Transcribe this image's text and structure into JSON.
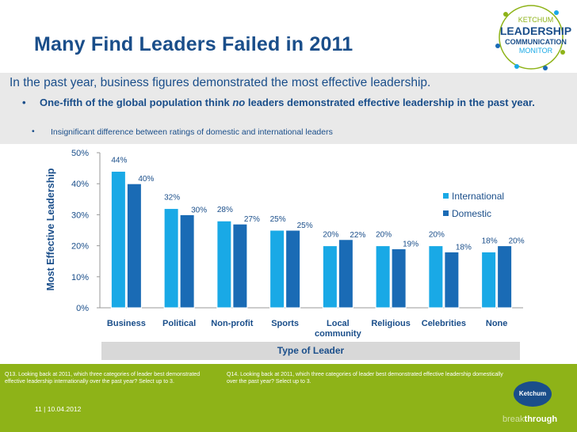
{
  "slide": {
    "title": "Many Find Leaders Failed in 2011",
    "line1": "In the past year, business figures demonstrated the most effective leadership.",
    "bullet1_dot": "•",
    "bullet1_pre": "One-fifth of the global population think ",
    "bullet1_em": "no",
    "bullet1_post": " leaders demonstrated effective leadership in the past year.",
    "bullet2_dot": "•",
    "bullet2": "Insignificant difference between ratings of domestic and international leaders",
    "page_number": "11 | 10.04.2012"
  },
  "logo": {
    "line1": "KETCHUM",
    "line2": "LEADERSHIP",
    "line3": "COMMUNICATION",
    "line4": "MONITOR"
  },
  "footer": {
    "q13": "Q13. Looking back at 2011, which three categories of leader best demonstrated effective leadership internationally over the past year?  Select up to 3.",
    "q14": "Q14. Looking back at 2011, which three categories of leader best demonstrated effective leadership domestically over the past year?  Select up to 3.",
    "ketchum": "Ketchum",
    "through_a": "break",
    "through_b": "through"
  },
  "colors": {
    "international": "#19a9e6",
    "domestic": "#1a6bb5",
    "title": "#1a4e8a",
    "footer": "#8eb318"
  },
  "chart_data": {
    "type": "bar",
    "title": "",
    "xlabel": "Type of Leader",
    "ylabel": "Most Effective Leadership",
    "ylim": [
      0,
      50
    ],
    "yticks": [
      "0%",
      "10%",
      "20%",
      "30%",
      "40%",
      "50%"
    ],
    "categories": [
      "Business",
      "Political",
      "Non-profit",
      "Sports",
      "Local community",
      "Religious",
      "Celebrities",
      "None"
    ],
    "series": [
      {
        "name": "International",
        "values": [
          44,
          32,
          28,
          25,
          20,
          20,
          20,
          18
        ],
        "labels": [
          "44%",
          "32%",
          "28%",
          "25%",
          "20%",
          "20%",
          "20%",
          "18%"
        ]
      },
      {
        "name": "Domestic",
        "values": [
          40,
          30,
          27,
          25,
          22,
          19,
          18,
          20
        ],
        "labels": [
          "40%",
          "30%",
          "27%",
          "25%",
          "22%",
          "19%",
          "18%",
          "20%"
        ]
      }
    ],
    "legend_position": "right"
  }
}
